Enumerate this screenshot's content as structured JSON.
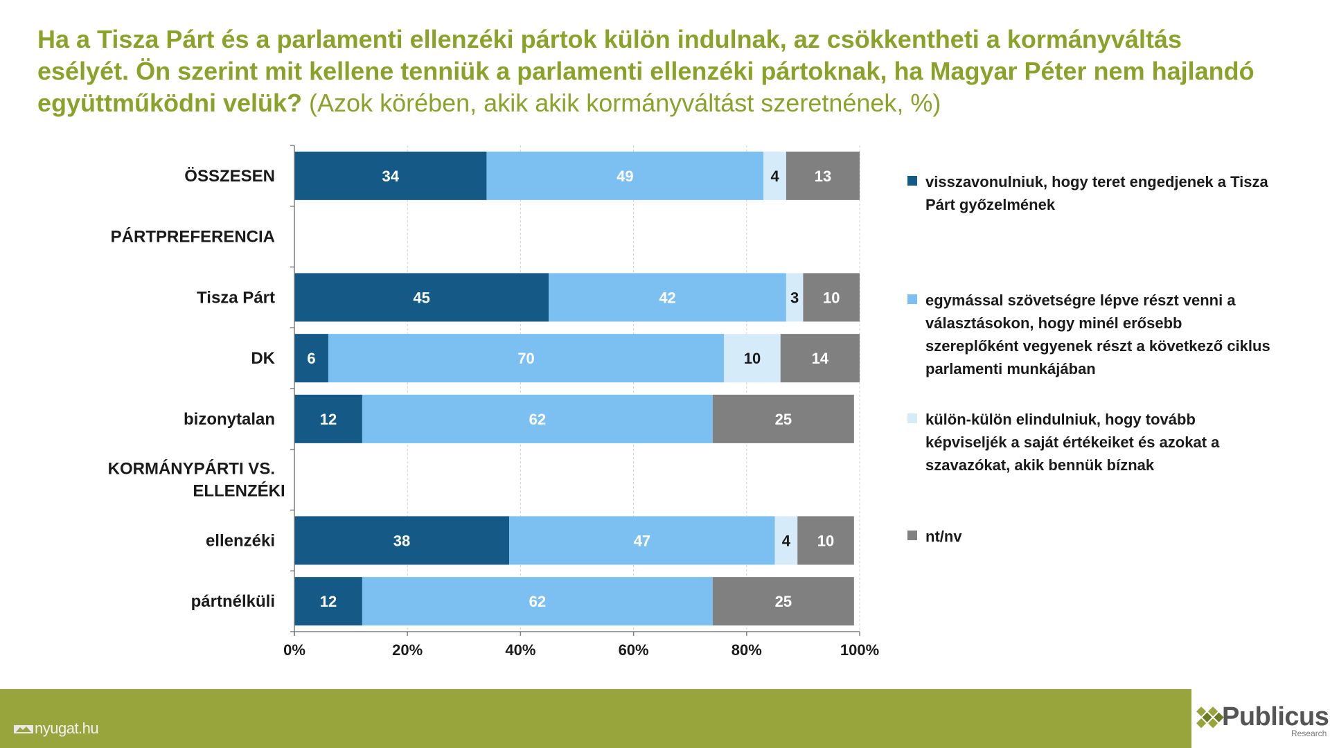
{
  "title": {
    "bold": "Ha a Tisza Párt és a parlamenti ellenzéki pártok külön indulnak, az csökkentheti a kormányváltás esélyét. Ön szerint mit kellene tenniük a parlamenti ellenzéki pártoknak, ha Magyar Péter nem hajlandó együttműködni velük?",
    "normal": " (Azok körében, akik akik kormányváltást szeretnének, %)"
  },
  "footer": {
    "source": "nyugat.hu",
    "brand": "Publicus",
    "brand_sub": "Research"
  },
  "colors": {
    "title": "#8aa22a",
    "footer": "#98a43c",
    "series": [
      "#155a87",
      "#7cc0f2",
      "#d6ebfa",
      "#808080"
    ],
    "label_colors": [
      "#ffffff",
      "#ffffff",
      "#1a1a1a",
      "#ffffff"
    ]
  },
  "chart_data": {
    "type": "bar",
    "orientation": "horizontal",
    "stacked": true,
    "percent_stacked": true,
    "categories": [
      "ÖSSZESEN",
      "PÁRTPREFERENCIA",
      "Tisza Párt",
      "DK",
      "bizonytalan",
      "KORMÁNYPÁRTI VS. ELLENZÉKI",
      "ellenzéki",
      "pártnélküli"
    ],
    "section_headers": [
      "PÁRTPREFERENCIA",
      "KORMÁNYPÁRTI VS. ELLENZÉKI"
    ],
    "series": [
      {
        "name": "visszavonulniuk, hogy teret engedjenek a Tisza Párt győzelmének",
        "values": [
          34,
          null,
          45,
          6,
          12,
          null,
          38,
          12
        ]
      },
      {
        "name": "egymással szövetségre lépve részt venni a választásokon, hogy minél erősebb szereplőként vegyenek részt a következő ciklus parlamenti munkájában",
        "values": [
          49,
          null,
          42,
          70,
          62,
          null,
          47,
          62
        ]
      },
      {
        "name": "külön-külön elindulniuk, hogy tovább képviseljék a saját értékeiket és azokat a szavazókat, akik bennük bíznak",
        "values": [
          4,
          null,
          3,
          10,
          0,
          null,
          4,
          0
        ]
      },
      {
        "name": "nt/nv",
        "values": [
          13,
          null,
          10,
          14,
          25,
          null,
          10,
          25
        ]
      }
    ],
    "xlim": [
      0,
      100
    ],
    "xticks": [
      "0%",
      "20%",
      "40%",
      "60%",
      "80%",
      "100%"
    ],
    "grid": true,
    "legend": "right"
  }
}
